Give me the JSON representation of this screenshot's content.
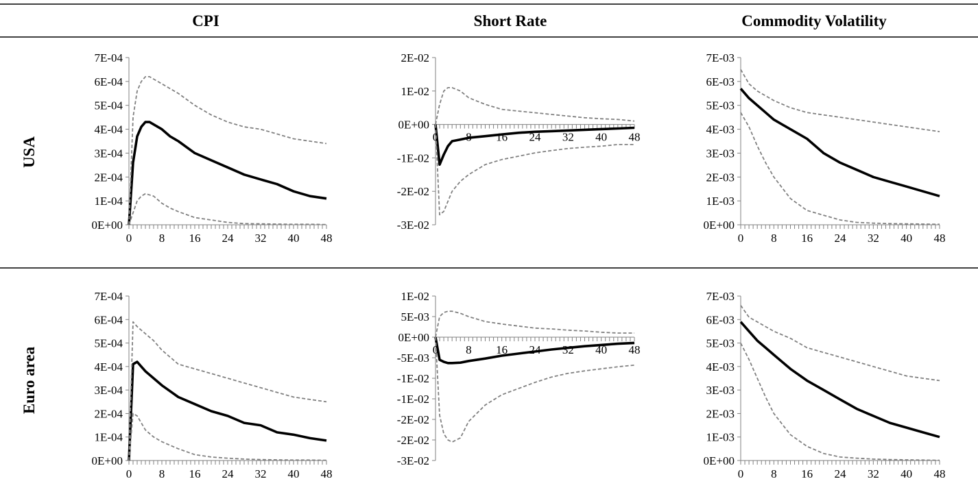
{
  "headers": {
    "col1": "CPI",
    "col2": "Short Rate",
    "col3": "Commodity Volatility"
  },
  "rows": {
    "row1": "USA",
    "row2": "Euro area"
  },
  "colors": {
    "irf": "#000000",
    "band": "#808080",
    "rule": "#000000"
  },
  "chart_data": [
    {
      "type": "line",
      "row": "USA",
      "column": "CPI",
      "ylim": [
        0,
        0.0007
      ],
      "yticks": [
        "0E+00",
        "1E-04",
        "2E-04",
        "3E-04",
        "4E-04",
        "5E-04",
        "6E-04",
        "7E-04"
      ],
      "xticks": [
        "0",
        "8",
        "16",
        "24",
        "32",
        "40",
        "48"
      ],
      "x_range": [
        0,
        48
      ],
      "series": [
        {
          "role": "irf",
          "x": [
            0,
            1,
            2,
            3,
            4,
            5,
            6,
            8,
            10,
            12,
            16,
            20,
            24,
            28,
            32,
            36,
            40,
            44,
            48
          ],
          "y": [
            0,
            0.00026,
            0.00037,
            0.00041,
            0.00043,
            0.00043,
            0.00042,
            0.0004,
            0.00037,
            0.00035,
            0.0003,
            0.00027,
            0.00024,
            0.00021,
            0.00019,
            0.00017,
            0.00014,
            0.00012,
            0.00011
          ]
        },
        {
          "role": "upper",
          "x": [
            0,
            1,
            2,
            3,
            4,
            5,
            6,
            8,
            10,
            12,
            16,
            20,
            24,
            28,
            32,
            36,
            40,
            44,
            48
          ],
          "y": [
            0,
            0.00045,
            0.00056,
            0.0006,
            0.00062,
            0.00062,
            0.00061,
            0.00059,
            0.00057,
            0.00055,
            0.0005,
            0.00046,
            0.00043,
            0.00041,
            0.0004,
            0.00038,
            0.00036,
            0.00035,
            0.00034
          ]
        },
        {
          "role": "lower",
          "x": [
            0,
            1,
            2,
            3,
            4,
            6,
            8,
            10,
            12,
            16,
            20,
            24,
            28,
            32,
            36,
            40,
            44,
            48
          ],
          "y": [
            0,
            5e-05,
            0.0001,
            0.00012,
            0.00013,
            0.00012,
            9e-05,
            7e-05,
            5.5e-05,
            3e-05,
            2e-05,
            1e-05,
            5e-06,
            4e-06,
            3e-06,
            2e-06,
            2e-06,
            1e-06
          ]
        }
      ]
    },
    {
      "type": "line",
      "row": "USA",
      "column": "Short Rate",
      "ylim": [
        -0.03,
        0.02
      ],
      "yticks": [
        "-3E-02",
        "-2E-02",
        "-1E-02",
        "0E+00",
        "1E-02",
        "2E-02"
      ],
      "xticks": [
        "0",
        "8",
        "16",
        "24",
        "32",
        "40",
        "48"
      ],
      "x_range": [
        0,
        48
      ],
      "series": [
        {
          "role": "irf",
          "x": [
            0,
            1,
            2,
            3,
            4,
            6,
            8,
            12,
            16,
            20,
            24,
            28,
            32,
            36,
            40,
            44,
            48
          ],
          "y": [
            0,
            -0.012,
            -0.009,
            -0.0065,
            -0.005,
            -0.0045,
            -0.004,
            -0.0035,
            -0.003,
            -0.0025,
            -0.0022,
            -0.002,
            -0.0018,
            -0.0016,
            -0.0014,
            -0.0012,
            -0.001
          ]
        },
        {
          "role": "upper",
          "x": [
            0,
            1,
            2,
            3,
            4,
            6,
            8,
            12,
            16,
            20,
            24,
            28,
            32,
            36,
            40,
            44,
            48
          ],
          "y": [
            0,
            0.006,
            0.01,
            0.011,
            0.011,
            0.01,
            0.008,
            0.006,
            0.0045,
            0.004,
            0.0035,
            0.003,
            0.0025,
            0.002,
            0.0017,
            0.0015,
            0.001
          ]
        },
        {
          "role": "lower",
          "x": [
            0,
            1,
            2,
            3,
            4,
            6,
            8,
            12,
            16,
            20,
            24,
            28,
            32,
            36,
            40,
            44,
            48
          ],
          "y": [
            0,
            -0.027,
            -0.026,
            -0.023,
            -0.02,
            -0.017,
            -0.015,
            -0.012,
            -0.0105,
            -0.0095,
            -0.0085,
            -0.0078,
            -0.0072,
            -0.0068,
            -0.0065,
            -0.006,
            -0.006
          ]
        }
      ]
    },
    {
      "type": "line",
      "row": "USA",
      "column": "Commodity Volatility",
      "ylim": [
        0,
        0.007
      ],
      "yticks": [
        "0E+00",
        "1E-03",
        "2E-03",
        "3E-03",
        "4E-03",
        "5E-03",
        "6E-03",
        "7E-03"
      ],
      "xticks": [
        "0",
        "8",
        "16",
        "24",
        "32",
        "40",
        "48"
      ],
      "x_range": [
        0,
        48
      ],
      "series": [
        {
          "role": "irf",
          "x": [
            0,
            2,
            4,
            6,
            8,
            12,
            16,
            20,
            24,
            28,
            32,
            36,
            40,
            44,
            48
          ],
          "y": [
            0.0057,
            0.0053,
            0.005,
            0.0047,
            0.0044,
            0.004,
            0.0036,
            0.003,
            0.0026,
            0.0023,
            0.002,
            0.0018,
            0.0016,
            0.0014,
            0.0012
          ]
        },
        {
          "role": "upper",
          "x": [
            0,
            2,
            4,
            6,
            8,
            12,
            16,
            20,
            24,
            28,
            32,
            36,
            40,
            44,
            48
          ],
          "y": [
            0.0065,
            0.0059,
            0.0056,
            0.0054,
            0.0052,
            0.0049,
            0.0047,
            0.0046,
            0.0045,
            0.0044,
            0.0043,
            0.0042,
            0.0041,
            0.004,
            0.0039
          ]
        },
        {
          "role": "lower",
          "x": [
            0,
            2,
            4,
            6,
            8,
            12,
            16,
            20,
            24,
            28,
            32,
            36,
            40,
            44,
            48
          ],
          "y": [
            0.0047,
            0.0041,
            0.0033,
            0.0026,
            0.002,
            0.0011,
            0.0006,
            0.0004,
            0.0002,
            0.0001,
            7e-05,
            5e-05,
            4e-05,
            3e-05,
            2e-05
          ]
        }
      ]
    },
    {
      "type": "line",
      "row": "Euro area",
      "column": "CPI",
      "ylim": [
        0,
        0.0007
      ],
      "yticks": [
        "0E+00",
        "1E-04",
        "2E-04",
        "3E-04",
        "4E-04",
        "5E-04",
        "6E-04",
        "7E-04"
      ],
      "xticks": [
        "0",
        "8",
        "16",
        "24",
        "32",
        "40",
        "48"
      ],
      "x_range": [
        0,
        48
      ],
      "series": [
        {
          "role": "irf",
          "x": [
            0,
            1,
            2,
            3,
            4,
            6,
            8,
            12,
            16,
            20,
            24,
            28,
            32,
            36,
            40,
            44,
            48
          ],
          "y": [
            0,
            0.00041,
            0.00042,
            0.0004,
            0.00038,
            0.00035,
            0.00032,
            0.00027,
            0.00024,
            0.00021,
            0.00019,
            0.00016,
            0.00015,
            0.00012,
            0.00011,
            9.5e-05,
            8.5e-05
          ]
        },
        {
          "role": "upper",
          "x": [
            0,
            1,
            2,
            4,
            6,
            8,
            10,
            12,
            16,
            20,
            24,
            28,
            32,
            36,
            40,
            44,
            48
          ],
          "y": [
            0,
            0.00059,
            0.00057,
            0.00054,
            0.00051,
            0.00047,
            0.00044,
            0.00041,
            0.00039,
            0.00037,
            0.00035,
            0.00033,
            0.00031,
            0.00029,
            0.00027,
            0.00026,
            0.00025
          ]
        },
        {
          "role": "lower",
          "x": [
            0,
            1,
            2,
            3,
            4,
            6,
            8,
            12,
            16,
            20,
            24,
            28,
            32,
            36,
            40,
            44,
            48
          ],
          "y": [
            0,
            0.0002,
            0.00019,
            0.00016,
            0.00013,
            0.0001,
            8e-05,
            5e-05,
            2.5e-05,
            1.5e-05,
            1e-05,
            6e-06,
            4e-06,
            3e-06,
            2e-06,
            2e-06,
            1e-06
          ]
        }
      ]
    },
    {
      "type": "line",
      "row": "Euro area",
      "column": "Short Rate",
      "ylim": [
        -0.03,
        0.01
      ],
      "yticks": [
        "-3E-02",
        "-2E-02",
        "-2E-02",
        "-1E-02",
        "-1E-02",
        "-5E-03",
        "0E+00",
        "5E-03",
        "1E-02"
      ],
      "xticks": [
        "0",
        "8",
        "16",
        "24",
        "32",
        "40",
        "48"
      ],
      "x_range": [
        0,
        48
      ],
      "series": [
        {
          "role": "irf",
          "x": [
            0,
            1,
            2,
            3,
            4,
            6,
            8,
            12,
            16,
            20,
            24,
            28,
            32,
            36,
            40,
            44,
            48
          ],
          "y": [
            0,
            -0.0055,
            -0.006,
            -0.0063,
            -0.0063,
            -0.0062,
            -0.0058,
            -0.0052,
            -0.0045,
            -0.004,
            -0.0035,
            -0.003,
            -0.0026,
            -0.0022,
            -0.0019,
            -0.0016,
            -0.0014
          ]
        },
        {
          "role": "upper",
          "x": [
            0,
            1,
            2,
            3,
            4,
            6,
            8,
            12,
            16,
            20,
            24,
            28,
            32,
            36,
            40,
            44,
            48
          ],
          "y": [
            0,
            0.005,
            0.006,
            0.0063,
            0.0063,
            0.0058,
            0.005,
            0.0038,
            0.0032,
            0.0027,
            0.0022,
            0.002,
            0.0017,
            0.0015,
            0.0012,
            0.001,
            0.001
          ]
        },
        {
          "role": "lower",
          "x": [
            0,
            1,
            2,
            3,
            4,
            6,
            8,
            12,
            16,
            20,
            24,
            28,
            32,
            36,
            40,
            44,
            48
          ],
          "y": [
            0,
            -0.019,
            -0.0235,
            -0.025,
            -0.0255,
            -0.0245,
            -0.0205,
            -0.0165,
            -0.014,
            -0.0125,
            -0.011,
            -0.0097,
            -0.0088,
            -0.0082,
            -0.0077,
            -0.0072,
            -0.0068
          ]
        }
      ]
    },
    {
      "type": "line",
      "row": "Euro area",
      "column": "Commodity Volatility",
      "ylim": [
        0,
        0.007
      ],
      "yticks": [
        "0E+00",
        "1E-03",
        "2E-03",
        "3E-03",
        "4E-03",
        "5E-03",
        "6E-03",
        "7E-03"
      ],
      "xticks": [
        "0",
        "8",
        "16",
        "24",
        "32",
        "40",
        "48"
      ],
      "x_range": [
        0,
        48
      ],
      "series": [
        {
          "role": "irf",
          "x": [
            0,
            2,
            4,
            6,
            8,
            12,
            16,
            20,
            24,
            28,
            32,
            36,
            40,
            44,
            48
          ],
          "y": [
            0.0059,
            0.0055,
            0.0051,
            0.0048,
            0.0045,
            0.0039,
            0.0034,
            0.003,
            0.0026,
            0.0022,
            0.0019,
            0.0016,
            0.0014,
            0.0012,
            0.001
          ]
        },
        {
          "role": "upper",
          "x": [
            0,
            2,
            4,
            6,
            8,
            12,
            16,
            20,
            24,
            28,
            32,
            36,
            40,
            44,
            48
          ],
          "y": [
            0.0066,
            0.0061,
            0.0059,
            0.0057,
            0.0055,
            0.0052,
            0.0048,
            0.0046,
            0.0044,
            0.0042,
            0.004,
            0.0038,
            0.0036,
            0.0035,
            0.0034
          ]
        },
        {
          "role": "lower",
          "x": [
            0,
            2,
            4,
            6,
            8,
            12,
            16,
            20,
            24,
            28,
            32,
            36,
            40,
            44,
            48
          ],
          "y": [
            0.005,
            0.0043,
            0.0035,
            0.0027,
            0.002,
            0.0011,
            0.0006,
            0.0003,
            0.00015,
            0.0001,
            6e-05,
            4e-05,
            3e-05,
            2e-05,
            1e-05
          ]
        }
      ]
    }
  ]
}
